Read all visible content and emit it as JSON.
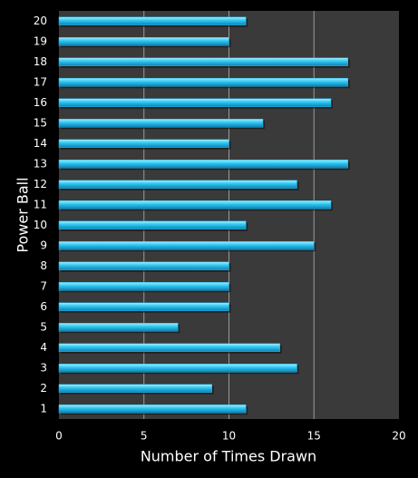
{
  "chart_data": {
    "type": "barh",
    "xlabel": "Number of Times Drawn",
    "ylabel": "Power Ball",
    "categories": [
      "1",
      "2",
      "3",
      "4",
      "5",
      "6",
      "7",
      "8",
      "9",
      "10",
      "11",
      "12",
      "13",
      "14",
      "15",
      "16",
      "17",
      "18",
      "19",
      "20"
    ],
    "values": [
      11,
      9,
      14,
      13,
      7,
      10,
      10,
      10,
      15,
      11,
      16,
      14,
      17,
      10,
      12,
      16,
      17,
      17,
      10,
      11
    ],
    "color": "#1fb4e6",
    "xlim": [
      0,
      20
    ],
    "xticks": [
      0,
      5,
      10,
      15,
      20
    ],
    "grid": true
  }
}
